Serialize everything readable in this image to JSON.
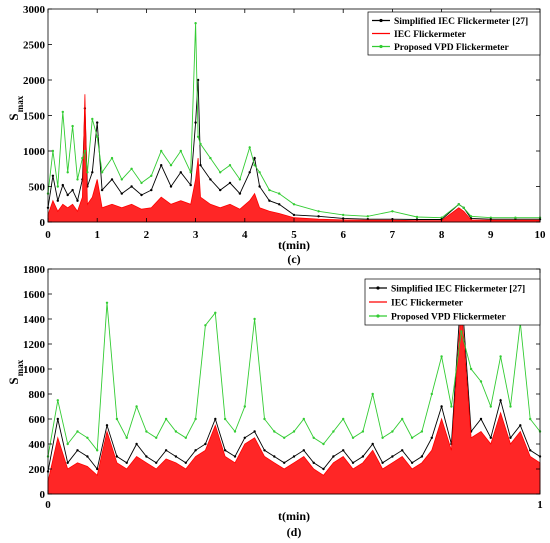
{
  "chart_data": [
    {
      "type": "line",
      "panel_label": "(c)",
      "xlabel": "t(min)",
      "ylabel_main": "S",
      "ylabel_sub": "max",
      "xlim": [
        0,
        10
      ],
      "ylim": [
        0,
        3000
      ],
      "x_ticks": [
        0,
        1,
        2,
        3,
        4,
        5,
        6,
        7,
        8,
        9,
        10
      ],
      "x_tick_labels": [
        "0",
        "1",
        "2",
        "3",
        "4",
        "5",
        "6",
        "7",
        "8",
        "9",
        "10"
      ],
      "y_ticks": [
        0,
        500,
        1000,
        1500,
        2000,
        2500,
        3000
      ],
      "y_tick_labels": [
        "0",
        "500",
        "1000",
        "1500",
        "2000",
        "2500",
        "3000"
      ],
      "legend_position": "top-right",
      "series": [
        {
          "name": "Simplified IEC Flickermeter [27]",
          "color": "#000000",
          "marker": "dot",
          "x": [
            0,
            0.1,
            0.2,
            0.3,
            0.4,
            0.5,
            0.6,
            0.7,
            0.75,
            0.8,
            0.9,
            1.0,
            1.1,
            1.3,
            1.5,
            1.7,
            1.9,
            2.1,
            2.3,
            2.5,
            2.7,
            2.9,
            3.0,
            3.05,
            3.1,
            3.3,
            3.5,
            3.7,
            3.9,
            4.1,
            4.2,
            4.3,
            4.5,
            4.7,
            5.0,
            5.5,
            6.0,
            6.5,
            7.0,
            7.5,
            8.0,
            8.35,
            8.45,
            8.6,
            9.0,
            9.5,
            10.0
          ],
          "values": [
            200,
            650,
            300,
            520,
            380,
            450,
            300,
            600,
            1600,
            500,
            700,
            1400,
            450,
            600,
            400,
            500,
            380,
            450,
            800,
            500,
            700,
            520,
            1400,
            2000,
            800,
            600,
            450,
            550,
            400,
            700,
            900,
            500,
            300,
            250,
            100,
            80,
            50,
            40,
            40,
            35,
            35,
            250,
            200,
            50,
            40,
            40,
            40
          ]
        },
        {
          "name": "IEC Flickermeter",
          "color": "#ff0000",
          "marker": "none",
          "x": [
            0,
            0.1,
            0.2,
            0.3,
            0.4,
            0.5,
            0.6,
            0.7,
            0.75,
            0.8,
            0.9,
            1.0,
            1.1,
            1.3,
            1.5,
            1.7,
            1.9,
            2.1,
            2.3,
            2.5,
            2.7,
            2.9,
            3.0,
            3.05,
            3.1,
            3.3,
            3.5,
            3.7,
            3.9,
            4.1,
            4.2,
            4.3,
            4.5,
            4.7,
            5.0,
            5.5,
            6.0,
            6.5,
            7.0,
            7.5,
            8.0,
            8.35,
            8.45,
            8.6,
            9.0,
            9.5,
            10.0
          ],
          "values": [
            100,
            300,
            150,
            250,
            200,
            250,
            150,
            350,
            1800,
            250,
            350,
            600,
            200,
            250,
            200,
            250,
            180,
            200,
            350,
            250,
            300,
            250,
            600,
            900,
            350,
            250,
            200,
            250,
            180,
            300,
            400,
            200,
            150,
            120,
            60,
            40,
            30,
            25,
            25,
            20,
            20,
            200,
            150,
            30,
            25,
            25,
            25
          ]
        },
        {
          "name": "Proposed VPD Flickermeter",
          "color": "#33cc33",
          "marker": "dot",
          "x": [
            0,
            0.1,
            0.2,
            0.3,
            0.4,
            0.5,
            0.6,
            0.7,
            0.75,
            0.8,
            0.9,
            1.0,
            1.1,
            1.3,
            1.5,
            1.7,
            1.9,
            2.1,
            2.3,
            2.5,
            2.7,
            2.9,
            3.0,
            3.05,
            3.1,
            3.3,
            3.5,
            3.7,
            3.9,
            4.1,
            4.2,
            4.3,
            4.5,
            4.7,
            5.0,
            5.5,
            6.0,
            6.5,
            7.0,
            7.5,
            8.0,
            8.35,
            8.45,
            8.6,
            9.0,
            9.5,
            10.0
          ],
          "values": [
            400,
            1000,
            500,
            1550,
            700,
            1350,
            600,
            900,
            1000,
            700,
            1450,
            1200,
            700,
            900,
            600,
            750,
            550,
            650,
            1000,
            800,
            1000,
            700,
            2800,
            1200,
            1100,
            900,
            700,
            800,
            600,
            1050,
            800,
            700,
            450,
            400,
            250,
            150,
            100,
            80,
            150,
            70,
            60,
            250,
            200,
            80,
            60,
            60,
            60
          ]
        }
      ]
    },
    {
      "type": "line",
      "panel_label": "(d)",
      "xlabel": "t(min)",
      "ylabel_main": "S",
      "ylabel_sub": "max",
      "xlim": [
        0,
        1
      ],
      "ylim": [
        0,
        1800
      ],
      "x_ticks": [
        0,
        1
      ],
      "x_tick_labels": [
        "0",
        "1"
      ],
      "y_ticks": [
        0,
        200,
        400,
        600,
        800,
        1000,
        1200,
        1400,
        1600,
        1800
      ],
      "y_tick_labels": [
        "0",
        "200",
        "400",
        "600",
        "800",
        "1000",
        "1200",
        "1400",
        "1600",
        "1800"
      ],
      "legend_position": "top-right",
      "series": [
        {
          "name": "Simplified IEC Flickermeter [27]",
          "color": "#000000",
          "marker": "dot",
          "x": [
            0,
            0.02,
            0.04,
            0.06,
            0.08,
            0.1,
            0.12,
            0.14,
            0.16,
            0.18,
            0.2,
            0.22,
            0.24,
            0.26,
            0.28,
            0.3,
            0.32,
            0.34,
            0.36,
            0.38,
            0.4,
            0.42,
            0.44,
            0.46,
            0.48,
            0.5,
            0.52,
            0.54,
            0.56,
            0.58,
            0.6,
            0.62,
            0.64,
            0.66,
            0.68,
            0.7,
            0.72,
            0.74,
            0.76,
            0.78,
            0.8,
            0.82,
            0.84,
            0.86,
            0.88,
            0.9,
            0.92,
            0.94,
            0.96,
            0.98,
            1.0
          ],
          "values": [
            180,
            600,
            250,
            350,
            300,
            200,
            550,
            300,
            250,
            400,
            300,
            250,
            350,
            300,
            250,
            350,
            400,
            600,
            350,
            300,
            450,
            500,
            350,
            300,
            250,
            300,
            350,
            250,
            200,
            300,
            350,
            250,
            300,
            400,
            250,
            300,
            350,
            250,
            300,
            450,
            700,
            400,
            1650,
            500,
            600,
            450,
            750,
            450,
            550,
            350,
            300
          ]
        },
        {
          "name": "IEC Flickermeter",
          "color": "#ff0000",
          "marker": "none",
          "x": [
            0,
            0.02,
            0.04,
            0.06,
            0.08,
            0.1,
            0.12,
            0.14,
            0.16,
            0.18,
            0.2,
            0.22,
            0.24,
            0.26,
            0.28,
            0.3,
            0.32,
            0.34,
            0.36,
            0.38,
            0.4,
            0.42,
            0.44,
            0.46,
            0.48,
            0.5,
            0.52,
            0.54,
            0.56,
            0.58,
            0.6,
            0.62,
            0.64,
            0.66,
            0.68,
            0.7,
            0.72,
            0.74,
            0.76,
            0.78,
            0.8,
            0.82,
            0.84,
            0.86,
            0.88,
            0.9,
            0.92,
            0.94,
            0.96,
            0.98,
            1.0
          ],
          "values": [
            100,
            450,
            200,
            250,
            220,
            150,
            500,
            250,
            200,
            300,
            250,
            200,
            280,
            250,
            200,
            300,
            350,
            550,
            300,
            250,
            400,
            450,
            300,
            250,
            200,
            250,
            300,
            200,
            150,
            250,
            300,
            200,
            250,
            350,
            200,
            250,
            300,
            200,
            250,
            350,
            600,
            350,
            1500,
            450,
            500,
            400,
            650,
            400,
            500,
            300,
            250
          ]
        },
        {
          "name": "Proposed VPD Flickermeter",
          "color": "#33cc33",
          "marker": "dot",
          "x": [
            0,
            0.02,
            0.04,
            0.06,
            0.08,
            0.1,
            0.12,
            0.14,
            0.16,
            0.18,
            0.2,
            0.22,
            0.24,
            0.26,
            0.28,
            0.3,
            0.32,
            0.34,
            0.36,
            0.38,
            0.4,
            0.42,
            0.44,
            0.46,
            0.48,
            0.5,
            0.52,
            0.54,
            0.56,
            0.58,
            0.6,
            0.62,
            0.64,
            0.66,
            0.68,
            0.7,
            0.72,
            0.74,
            0.76,
            0.78,
            0.8,
            0.82,
            0.84,
            0.86,
            0.88,
            0.9,
            0.92,
            0.94,
            0.96,
            0.98,
            1.0
          ],
          "values": [
            300,
            750,
            400,
            500,
            450,
            350,
            1530,
            600,
            450,
            700,
            500,
            450,
            600,
            500,
            450,
            600,
            1350,
            1450,
            600,
            500,
            700,
            1400,
            600,
            500,
            450,
            500,
            600,
            450,
            400,
            500,
            600,
            450,
            500,
            800,
            450,
            500,
            600,
            450,
            500,
            800,
            1100,
            700,
            1300,
            1000,
            900,
            700,
            1100,
            700,
            1370,
            600,
            500
          ]
        }
      ]
    }
  ]
}
